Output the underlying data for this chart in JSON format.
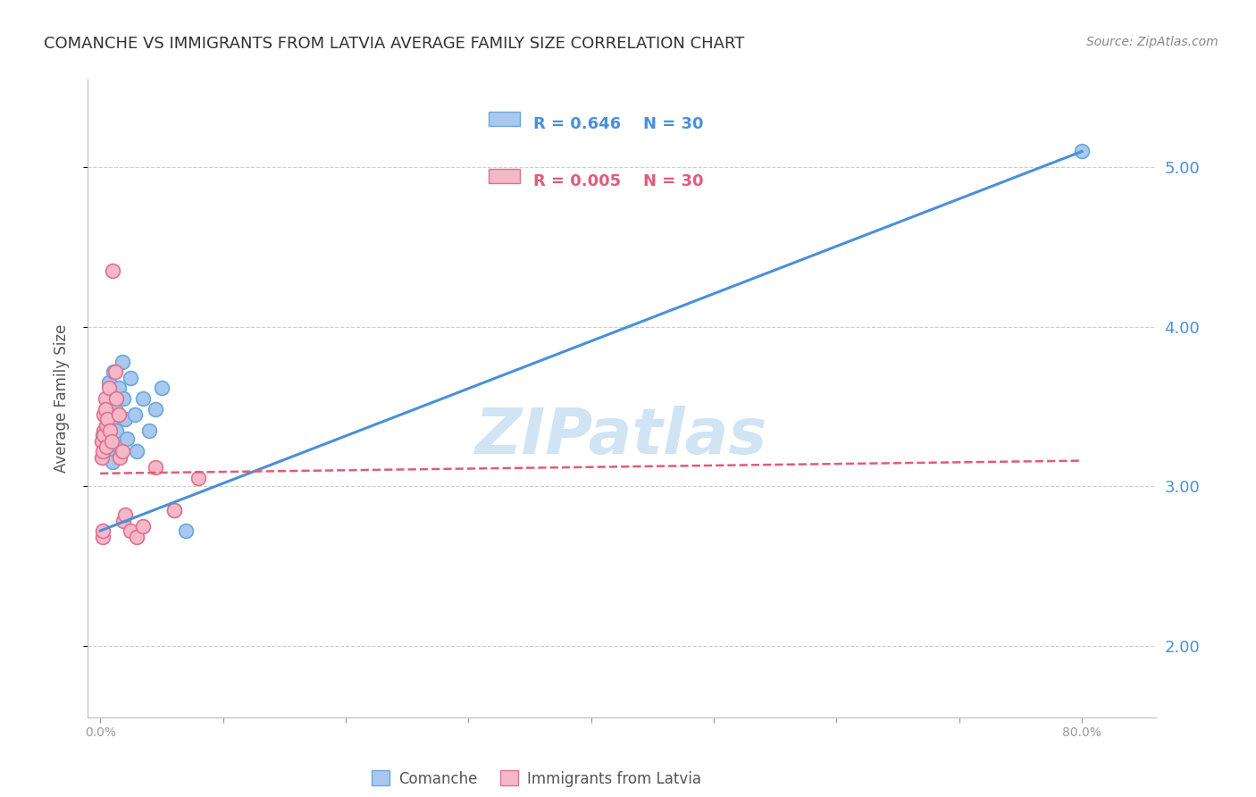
{
  "title": "COMANCHE VS IMMIGRANTS FROM LATVIA AVERAGE FAMILY SIZE CORRELATION CHART",
  "source": "Source: ZipAtlas.com",
  "ylabel": "Average Family Size",
  "yticks_right": [
    2.0,
    3.0,
    4.0,
    5.0
  ],
  "background_color": "#ffffff",
  "watermark": "ZIPatlas",
  "legend_stats": [
    {
      "R": "0.646",
      "N": "30"
    },
    {
      "R": "0.005",
      "N": "30"
    }
  ],
  "comanche_points": [
    [
      0.002,
      3.32
    ],
    [
      0.003,
      3.18
    ],
    [
      0.004,
      3.45
    ],
    [
      0.005,
      3.55
    ],
    [
      0.006,
      3.22
    ],
    [
      0.006,
      3.38
    ],
    [
      0.007,
      3.65
    ],
    [
      0.008,
      3.28
    ],
    [
      0.009,
      3.42
    ],
    [
      0.009,
      3.58
    ],
    [
      0.01,
      3.15
    ],
    [
      0.011,
      3.72
    ],
    [
      0.012,
      3.48
    ],
    [
      0.013,
      3.35
    ],
    [
      0.015,
      3.62
    ],
    [
      0.016,
      3.25
    ],
    [
      0.018,
      3.78
    ],
    [
      0.019,
      3.55
    ],
    [
      0.02,
      3.42
    ],
    [
      0.022,
      3.3
    ],
    [
      0.025,
      3.68
    ],
    [
      0.028,
      3.45
    ],
    [
      0.03,
      3.22
    ],
    [
      0.035,
      3.55
    ],
    [
      0.04,
      3.35
    ],
    [
      0.045,
      3.48
    ],
    [
      0.05,
      3.62
    ],
    [
      0.06,
      2.85
    ],
    [
      0.07,
      2.72
    ],
    [
      0.8,
      5.1
    ]
  ],
  "latvia_points": [
    [
      0.001,
      3.28
    ],
    [
      0.001,
      3.18
    ],
    [
      0.002,
      3.22
    ],
    [
      0.002,
      2.68
    ],
    [
      0.002,
      2.72
    ],
    [
      0.003,
      3.35
    ],
    [
      0.003,
      3.32
    ],
    [
      0.003,
      3.45
    ],
    [
      0.004,
      3.55
    ],
    [
      0.004,
      3.48
    ],
    [
      0.005,
      3.38
    ],
    [
      0.005,
      3.25
    ],
    [
      0.006,
      3.42
    ],
    [
      0.007,
      3.62
    ],
    [
      0.008,
      3.35
    ],
    [
      0.009,
      3.28
    ],
    [
      0.01,
      4.35
    ],
    [
      0.012,
      3.72
    ],
    [
      0.013,
      3.55
    ],
    [
      0.015,
      3.45
    ],
    [
      0.016,
      3.18
    ],
    [
      0.018,
      3.22
    ],
    [
      0.019,
      2.78
    ],
    [
      0.02,
      2.82
    ],
    [
      0.025,
      2.72
    ],
    [
      0.03,
      2.68
    ],
    [
      0.035,
      2.75
    ],
    [
      0.045,
      3.12
    ],
    [
      0.06,
      2.85
    ],
    [
      0.08,
      3.05
    ]
  ],
  "blue_line_x": [
    0.0,
    0.8
  ],
  "blue_line_y": [
    2.72,
    5.1
  ],
  "pink_line_x": [
    0.0,
    0.8
  ],
  "pink_line_y": [
    3.08,
    3.16
  ],
  "blue_line_color": "#4a90d9",
  "pink_line_color": "#e05c7a",
  "dot_blue_color": "#a8c8f0",
  "dot_pink_color": "#f4b8c8",
  "dot_blue_edge": "#6aa8d8",
  "dot_pink_edge": "#e07090",
  "grid_color": "#cccccc",
  "title_color": "#333333",
  "title_fontsize": 13,
  "source_fontsize": 10,
  "watermark_color": "#d0e4f4",
  "watermark_fontsize": 52,
  "xlim": [
    -0.01,
    0.86
  ],
  "ylim": [
    1.55,
    5.55
  ]
}
